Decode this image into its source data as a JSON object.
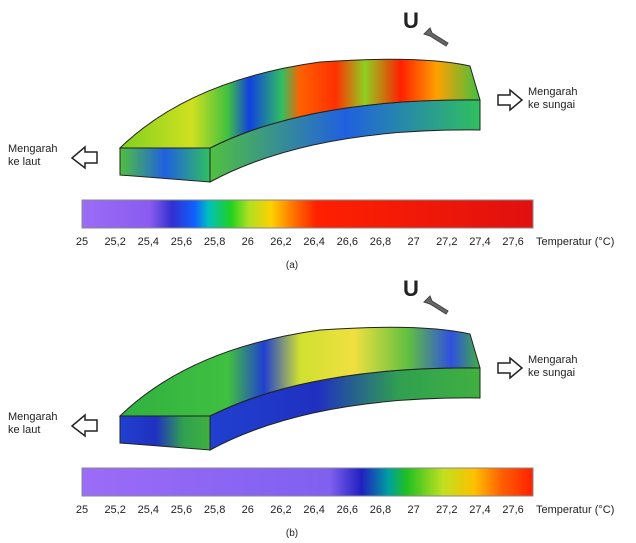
{
  "panels": [
    {
      "direction": "U",
      "right_label": [
        "Mengarah",
        "ke sungai"
      ],
      "left_label": [
        "Mengarah",
        "ke laut"
      ],
      "colorbar": {
        "title": "Temperatur (°C)",
        "lim": [
          25,
          27.72
        ],
        "ticks": [
          {
            "value": 25,
            "label": "25"
          },
          {
            "value": 25.2,
            "label": "25,2"
          },
          {
            "value": 25.4,
            "label": "25,4"
          },
          {
            "value": 25.6,
            "label": "25,6"
          },
          {
            "value": 25.8,
            "label": "25,8"
          },
          {
            "value": 26,
            "label": "26"
          },
          {
            "value": 26.2,
            "label": "26,2"
          },
          {
            "value": 26.4,
            "label": "26,4"
          },
          {
            "value": 26.6,
            "label": "26,6"
          },
          {
            "value": 26.8,
            "label": "26,8"
          },
          {
            "value": 27,
            "label": "27"
          },
          {
            "value": 27.2,
            "label": "27,2"
          },
          {
            "value": 27.4,
            "label": "27,4"
          },
          {
            "value": 27.6,
            "label": "27,6"
          }
        ]
      },
      "caption": "(a)"
    },
    {
      "direction": "U",
      "right_label": [
        "Mengarah",
        "ke sungai"
      ],
      "left_label": [
        "Mengarah",
        "ke laut"
      ],
      "colorbar": {
        "title": "Temperatur (°C)",
        "lim": [
          25,
          27.72
        ],
        "ticks": [
          {
            "value": 25,
            "label": "25"
          },
          {
            "value": 25.2,
            "label": "25,2"
          },
          {
            "value": 25.4,
            "label": "25,4"
          },
          {
            "value": 25.6,
            "label": "25,6"
          },
          {
            "value": 25.8,
            "label": "25,8"
          },
          {
            "value": 26,
            "label": "26"
          },
          {
            "value": 26.2,
            "label": "26,2"
          },
          {
            "value": 26.4,
            "label": "26,4"
          },
          {
            "value": 26.6,
            "label": "26,6"
          },
          {
            "value": 26.8,
            "label": "26,8"
          },
          {
            "value": 27,
            "label": "27"
          },
          {
            "value": 27.2,
            "label": "27,2"
          },
          {
            "value": 27.4,
            "label": "27,4"
          },
          {
            "value": 27.6,
            "label": "27,6"
          }
        ]
      },
      "caption": "(b)"
    }
  ]
}
